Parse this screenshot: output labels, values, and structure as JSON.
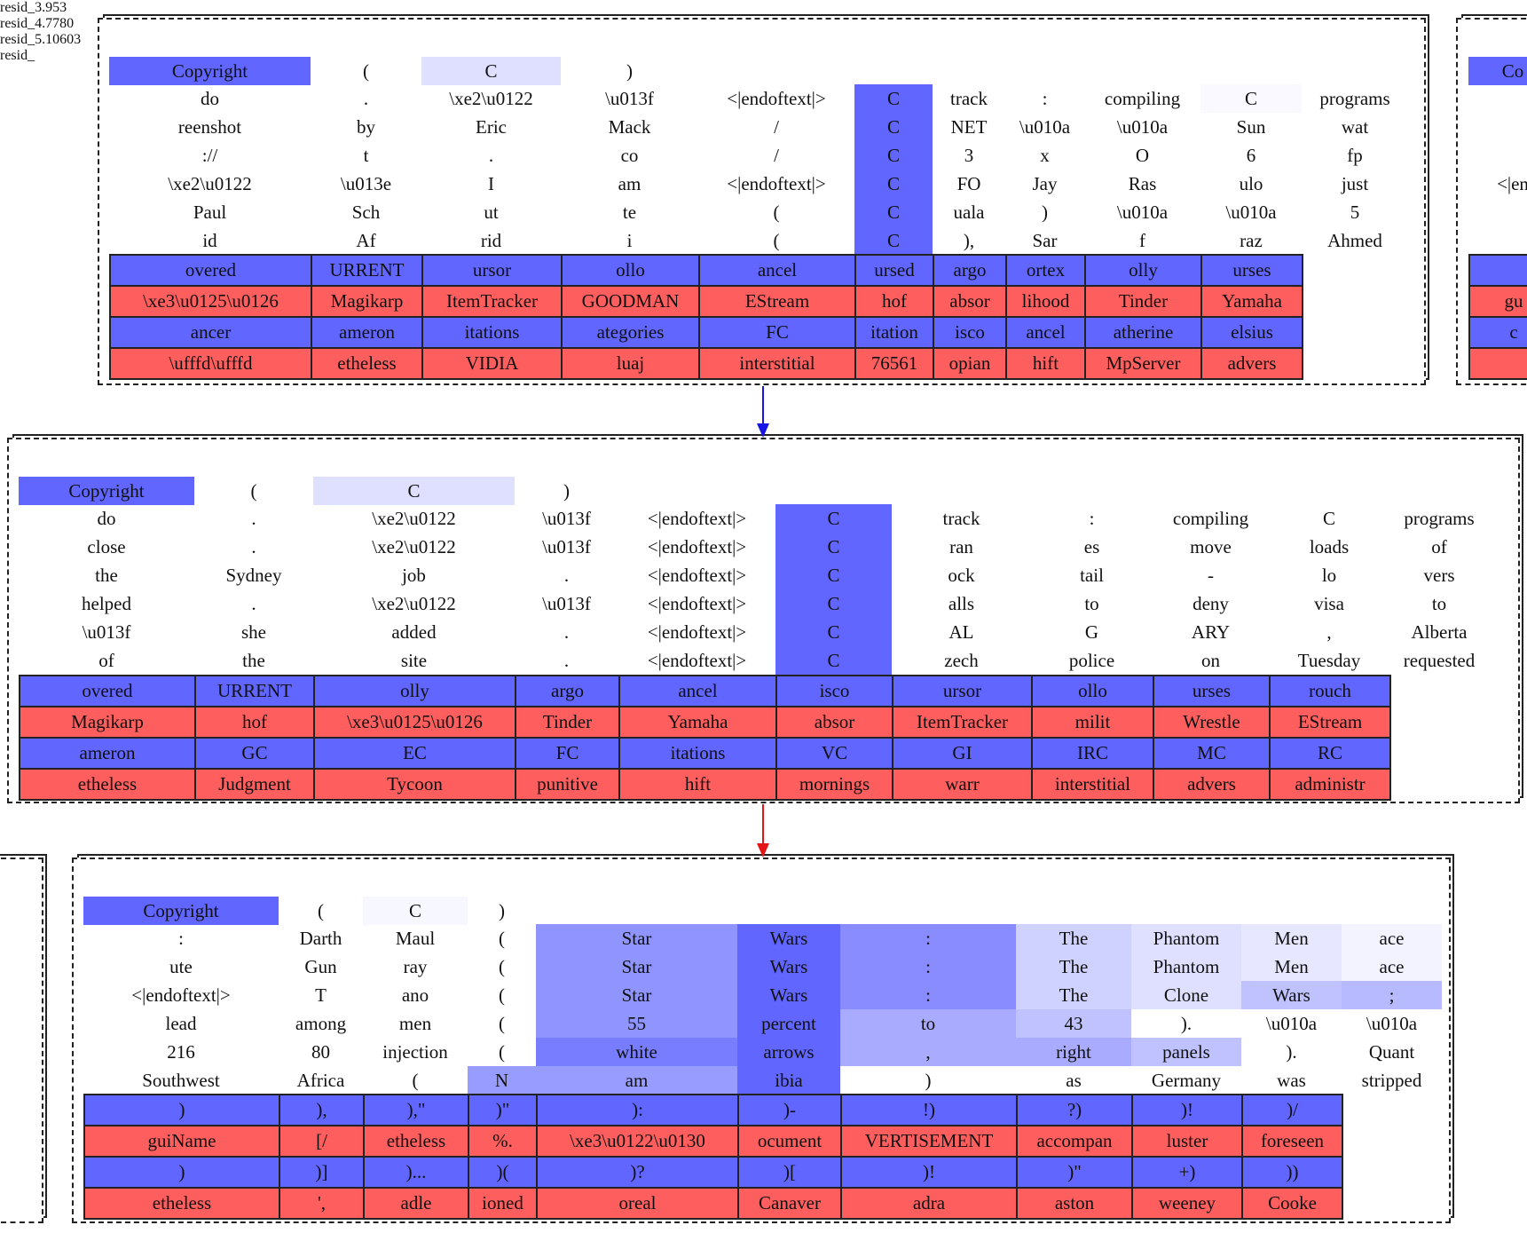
{
  "colors": {
    "pos": "#6066ff",
    "neg": "#ff5e5e",
    "blue_arrow": "#1515e6",
    "red_arrow": "#e61515"
  },
  "nodes": [
    {
      "title": "resid_3.953",
      "context": [
        "Copyright",
        "(",
        "C",
        ")"
      ],
      "context_intensity": [
        1,
        0,
        0.2,
        0
      ],
      "examples": [
        [
          "do",
          ".",
          "\\xe2\\u0122",
          "\\u013f",
          "<|endoftext|>",
          "C",
          "track",
          ":",
          "compiling",
          "C",
          "programs"
        ],
        [
          "reenshot",
          "by",
          "Eric",
          "Mack",
          "/",
          "C",
          "NET",
          "\\u010a",
          "\\u010a",
          "Sun",
          "wat"
        ],
        [
          "://",
          "t",
          ".",
          "co",
          "/",
          "C",
          "3",
          "x",
          "O",
          "6",
          "fp"
        ],
        [
          "\\xe2\\u0122",
          "\\u013e",
          "I",
          "am",
          "<|endoftext|>",
          "C",
          "FO",
          "Jay",
          "Ras",
          "ulo",
          "just"
        ],
        [
          "Paul",
          "Sch",
          "ut",
          "te",
          "(",
          "C",
          "uala",
          ")",
          "\\u010a",
          "\\u010a",
          "5"
        ],
        [
          "id",
          "Af",
          "rid",
          "i",
          "(",
          "C",
          "),",
          "Sar",
          "f",
          "raz",
          "Ahmed"
        ]
      ],
      "highlight": [
        [
          0,
          0,
          0,
          0,
          0,
          1,
          0,
          0,
          0,
          0.04,
          0
        ],
        [
          0,
          0,
          0,
          0,
          0,
          1,
          0,
          0,
          0,
          0,
          0
        ],
        [
          0,
          0,
          0,
          0,
          0,
          1,
          0,
          0,
          0,
          0,
          0
        ],
        [
          0,
          0,
          0,
          0,
          0,
          1,
          0,
          0,
          0,
          0,
          0
        ],
        [
          0,
          0,
          0,
          0,
          0,
          1,
          0,
          0,
          0,
          0,
          0
        ],
        [
          0,
          0,
          0,
          0,
          0,
          1,
          0,
          0,
          0,
          0,
          0
        ]
      ],
      "token_rows": [
        {
          "kind": "pos",
          "tokens": [
            "overed",
            "URRENT",
            "ursor",
            "ollo",
            "ancel",
            "ursed",
            "argo",
            "ortex",
            "olly",
            "urses"
          ]
        },
        {
          "kind": "neg",
          "tokens": [
            "\\xe3\\u0125\\u0126",
            "Magikarp",
            "ItemTracker",
            "GOODMAN",
            "EStream",
            "hof",
            "absor",
            "lihood",
            "Tinder",
            "Yamaha"
          ]
        },
        {
          "kind": "pos",
          "tokens": [
            "ancer",
            "ameron",
            "itations",
            "ategories",
            "FC",
            "itation",
            "isco",
            "ancel",
            "atherine",
            "elsius"
          ]
        },
        {
          "kind": "neg",
          "tokens": [
            "\\ufffd\\ufffd",
            "etheless",
            "VIDIA",
            "luaj",
            "interstitial",
            "76561",
            "opian",
            "hift",
            "MpServer",
            "advers"
          ]
        }
      ]
    },
    {
      "title": "resid_4.7780",
      "context": [
        "Copyright",
        "(",
        "C",
        ")"
      ],
      "context_intensity": [
        1,
        0,
        0.2,
        0
      ],
      "examples": [
        [
          "do",
          ".",
          "\\xe2\\u0122",
          "\\u013f",
          "<|endoftext|>",
          "C",
          "track",
          ":",
          "compiling",
          "C",
          "programs"
        ],
        [
          "close",
          ".",
          "\\xe2\\u0122",
          "\\u013f",
          "<|endoftext|>",
          "C",
          "ran",
          "es",
          "move",
          "loads",
          "of"
        ],
        [
          "the",
          "Sydney",
          "job",
          ".",
          "<|endoftext|>",
          "C",
          "ock",
          "tail",
          "-",
          "lo",
          "vers"
        ],
        [
          "helped",
          ".",
          "\\xe2\\u0122",
          "\\u013f",
          "<|endoftext|>",
          "C",
          "alls",
          "to",
          "deny",
          "visa",
          "to"
        ],
        [
          "\\u013f",
          "she",
          "added",
          ".",
          "<|endoftext|>",
          "C",
          "AL",
          "G",
          "ARY",
          ",",
          "Alberta"
        ],
        [
          "of",
          "the",
          "site",
          ".",
          "<|endoftext|>",
          "C",
          "zech",
          "police",
          "on",
          "Tuesday",
          "requested"
        ]
      ],
      "highlight": [
        [
          0,
          0,
          0,
          0,
          0,
          1,
          0,
          0,
          0,
          0,
          0
        ],
        [
          0,
          0,
          0,
          0,
          0,
          1,
          0,
          0,
          0,
          0,
          0
        ],
        [
          0,
          0,
          0,
          0,
          0,
          1,
          0,
          0,
          0,
          0,
          0
        ],
        [
          0,
          0,
          0,
          0,
          0,
          1,
          0,
          0,
          0,
          0,
          0
        ],
        [
          0,
          0,
          0,
          0,
          0,
          1,
          0,
          0,
          0,
          0,
          0
        ],
        [
          0,
          0,
          0,
          0,
          0,
          1,
          0,
          0,
          0,
          0,
          0
        ]
      ],
      "token_rows": [
        {
          "kind": "pos",
          "tokens": [
            "overed",
            "URRENT",
            "olly",
            "argo",
            "ancel",
            "isco",
            "ursor",
            "ollo",
            "urses",
            "rouch"
          ]
        },
        {
          "kind": "neg",
          "tokens": [
            "Magikarp",
            "hof",
            "\\xe3\\u0125\\u0126",
            "Tinder",
            "Yamaha",
            "absor",
            "ItemTracker",
            "milit",
            "Wrestle",
            "EStream"
          ]
        },
        {
          "kind": "pos",
          "tokens": [
            "ameron",
            "GC",
            "EC",
            "FC",
            "itations",
            "VC",
            "GI",
            "IRC",
            "MC",
            "RC"
          ]
        },
        {
          "kind": "neg",
          "tokens": [
            "etheless",
            "Judgment",
            "Tycoon",
            "punitive",
            "hift",
            "mornings",
            "warr",
            "interstitial",
            "advers",
            "administr"
          ]
        }
      ]
    },
    {
      "title": "resid_5.10603",
      "context": [
        "Copyright",
        "(",
        "C",
        ")"
      ],
      "context_intensity": [
        1,
        0,
        0.05,
        0
      ],
      "examples": [
        [
          ":",
          "Darth",
          "Maul",
          "(",
          "Star",
          "Wars",
          ":",
          "The",
          "Phantom",
          "Men",
          "ace"
        ],
        [
          "ute",
          "Gun",
          "ray",
          "(",
          "Star",
          "Wars",
          ":",
          "The",
          "Phantom",
          "Men",
          "ace"
        ],
        [
          "<|endoftext|>",
          "T",
          "ano",
          "(",
          "Star",
          "Wars",
          ":",
          "The",
          "Clone",
          "Wars",
          ";"
        ],
        [
          "lead",
          "among",
          "men",
          "(",
          "55",
          "percent",
          "to",
          "43",
          ").",
          "\\u010a",
          "\\u010a"
        ],
        [
          "216",
          "80",
          "injection",
          "(",
          "white",
          "arrows",
          ",",
          "right",
          "panels",
          ").",
          "Quant"
        ],
        [
          "Southwest",
          "Africa",
          "(",
          "N",
          "am",
          "ibia",
          ")",
          "as",
          "Germany",
          "was",
          "stripped"
        ]
      ],
      "highlight": [
        [
          0,
          0,
          0,
          0,
          0.7,
          1,
          0.75,
          0.3,
          0.2,
          0.15,
          0.08
        ],
        [
          0,
          0,
          0,
          0,
          0.7,
          1,
          0.75,
          0.3,
          0.2,
          0.15,
          0.08
        ],
        [
          0,
          0,
          0,
          0,
          0.7,
          1,
          0.75,
          0.3,
          0.2,
          0.4,
          0.45
        ],
        [
          0,
          0,
          0,
          0,
          0.7,
          1,
          0.55,
          0.4,
          0,
          0,
          0
        ],
        [
          0,
          0,
          0,
          0,
          0.85,
          1,
          0.55,
          0.55,
          0.4,
          0,
          0
        ],
        [
          0,
          0,
          0,
          0.65,
          0.65,
          1,
          0,
          0,
          0,
          0,
          0
        ]
      ],
      "token_rows": [
        {
          "kind": "pos",
          "tokens": [
            ")",
            "),",
            "),\"",
            ")\"",
            "):",
            ")-",
            "!)",
            "?)",
            ")!",
            ")/"
          ]
        },
        {
          "kind": "neg",
          "tokens": [
            "guiName",
            "[/",
            "etheless",
            "%.",
            "\\xe3\\u0122\\u0130",
            "ocument",
            "VERTISEMENT",
            "accompan",
            "luster",
            "foreseen"
          ]
        },
        {
          "kind": "pos",
          "tokens": [
            ")",
            ")]",
            ")...",
            ")(",
            ")?",
            ")[",
            ")!",
            ")\"",
            "+)",
            "))"
          ]
        },
        {
          "kind": "neg",
          "tokens": [
            "etheless",
            "',",
            "adle",
            "ioned",
            "oreal",
            "Canaver",
            "adra",
            "aston",
            "weeney",
            "Cooke"
          ]
        }
      ]
    },
    {
      "title": "resid_",
      "context": [
        "Co"
      ],
      "context_intensity": [
        1
      ],
      "examples": [
        [
          ""
        ],
        [
          ""
        ],
        [
          ""
        ],
        [
          "<|en"
        ],
        [
          ""
        ],
        [
          ""
        ]
      ],
      "highlight": [
        [
          0
        ],
        [
          0
        ],
        [
          0
        ],
        [
          0
        ],
        [
          0
        ],
        [
          0
        ]
      ],
      "token_rows": [
        {
          "kind": "pos",
          "tokens": [
            ""
          ]
        },
        {
          "kind": "neg",
          "tokens": [
            "gu"
          ]
        },
        {
          "kind": "pos",
          "tokens": [
            "c"
          ]
        },
        {
          "kind": "neg",
          "tokens": [
            ""
          ]
        }
      ]
    }
  ]
}
